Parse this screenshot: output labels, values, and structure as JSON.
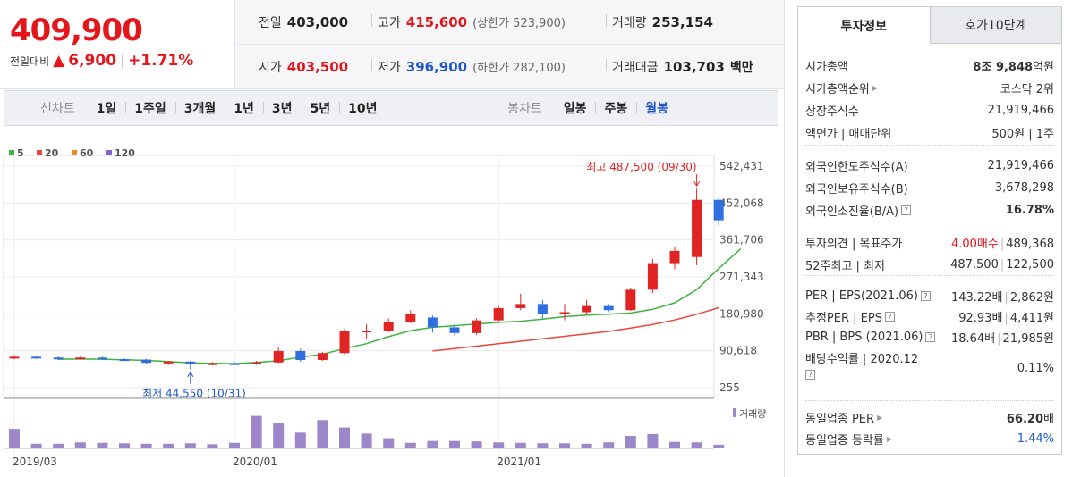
{
  "price": {
    "current": "409,900",
    "change_label": "전일대비",
    "change_symbol": "▲",
    "change_value": "6,900",
    "change_pct": "+1.71%"
  },
  "quote": {
    "prev_label": "전일",
    "prev_value": "403,000",
    "high_label": "고가",
    "high_value": "415,600",
    "upper_limit": "(상한가 523,900)",
    "volume_label": "거래량",
    "volume_value": "253,154",
    "open_label": "시가",
    "open_value": "403,500",
    "low_label": "저가",
    "low_value": "396,900",
    "lower_limit": "(하한가 282,100)",
    "amount_label": "거래대금",
    "amount_value": "103,703",
    "amount_unit": "백만"
  },
  "period_bar": {
    "line_label": "선차트",
    "line_items": [
      "1일",
      "1주일",
      "3개월",
      "1년",
      "3년",
      "5년",
      "10년"
    ],
    "candle_label": "봉차트",
    "candle_items": [
      "일봉",
      "주봉",
      "월봉"
    ],
    "active_candle": "월봉"
  },
  "chart_data": {
    "type": "candlestick",
    "ma_legend": [
      {
        "name": "5",
        "color": "#3fb23f"
      },
      {
        "name": "20",
        "color": "#e8463c"
      },
      {
        "name": "60",
        "color": "#f08a1c"
      },
      {
        "name": "120",
        "color": "#8a63c6"
      }
    ],
    "y_ticks": [
      "542,431",
      "452,068",
      "361,706",
      "271,343",
      "180,980",
      "90,618",
      "255"
    ],
    "ylim": [
      255,
      542431
    ],
    "x_ticks": [
      "2019/03",
      "2020/01",
      "2021/01"
    ],
    "annotation_high": "최고 487,500 (09/30)",
    "annotation_low": "최저 44,550 (10/31)",
    "volume_label": "거래량",
    "up_color": "#e02424",
    "down_color": "#2f6fe0",
    "candles": [
      {
        "o": 74000,
        "h": 80000,
        "l": 70000,
        "c": 76000
      },
      {
        "o": 76000,
        "h": 79000,
        "l": 71000,
        "c": 74000
      },
      {
        "o": 74000,
        "h": 77000,
        "l": 68000,
        "c": 72000
      },
      {
        "o": 72000,
        "h": 77000,
        "l": 69000,
        "c": 74000
      },
      {
        "o": 74000,
        "h": 76000,
        "l": 68000,
        "c": 70000
      },
      {
        "o": 70000,
        "h": 72000,
        "l": 66000,
        "c": 69000
      },
      {
        "o": 69000,
        "h": 71000,
        "l": 58000,
        "c": 61000
      },
      {
        "o": 61000,
        "h": 66000,
        "l": 56000,
        "c": 64000
      },
      {
        "o": 64000,
        "h": 66000,
        "l": 44550,
        "c": 58000
      },
      {
        "o": 58000,
        "h": 63000,
        "l": 55000,
        "c": 60000
      },
      {
        "o": 60000,
        "h": 64000,
        "l": 57000,
        "c": 58000
      },
      {
        "o": 58000,
        "h": 66000,
        "l": 56000,
        "c": 62000
      },
      {
        "o": 62000,
        "h": 100000,
        "l": 60000,
        "c": 90000
      },
      {
        "o": 90000,
        "h": 96000,
        "l": 64000,
        "c": 68000
      },
      {
        "o": 68000,
        "h": 88000,
        "l": 66000,
        "c": 85000
      },
      {
        "o": 85000,
        "h": 145000,
        "l": 82000,
        "c": 140000
      },
      {
        "o": 138000,
        "h": 156000,
        "l": 120000,
        "c": 140000
      },
      {
        "o": 140000,
        "h": 170000,
        "l": 136000,
        "c": 162000
      },
      {
        "o": 162000,
        "h": 190000,
        "l": 158000,
        "c": 180000
      },
      {
        "o": 172000,
        "h": 177000,
        "l": 135000,
        "c": 148000
      },
      {
        "o": 148000,
        "h": 156000,
        "l": 128000,
        "c": 134000
      },
      {
        "o": 134000,
        "h": 170000,
        "l": 130000,
        "c": 165000
      },
      {
        "o": 165000,
        "h": 200000,
        "l": 160000,
        "c": 195000
      },
      {
        "o": 195000,
        "h": 230000,
        "l": 190000,
        "c": 205000
      },
      {
        "o": 205000,
        "h": 215000,
        "l": 170000,
        "c": 180000
      },
      {
        "o": 180000,
        "h": 205000,
        "l": 165000,
        "c": 185000
      },
      {
        "o": 185000,
        "h": 215000,
        "l": 180000,
        "c": 200000
      },
      {
        "o": 200000,
        "h": 205000,
        "l": 185000,
        "c": 190000
      },
      {
        "o": 190000,
        "h": 245000,
        "l": 188000,
        "c": 240000
      },
      {
        "o": 240000,
        "h": 315000,
        "l": 232000,
        "c": 305000
      },
      {
        "o": 305000,
        "h": 345000,
        "l": 290000,
        "c": 335000
      },
      {
        "o": 320000,
        "h": 487500,
        "l": 300000,
        "c": 460000
      },
      {
        "o": 460000,
        "h": 465000,
        "l": 396900,
        "c": 409900
      }
    ],
    "ma5_start_index": 2,
    "ma5": [
      70000,
      70500,
      70000,
      68500,
      67000,
      64000,
      61000,
      60000,
      59000,
      62000,
      66000,
      75000,
      82000,
      96000,
      108000,
      125000,
      140000,
      148000,
      152000,
      156000,
      160000,
      163000,
      168000,
      174000,
      178000,
      180000,
      183000,
      192000,
      208000,
      240000,
      292000,
      340000
    ],
    "ma20_start_index": 19,
    "ma20": [
      90000,
      96000,
      102000,
      108000,
      114000,
      120000,
      126000,
      132000,
      138000,
      146000,
      155000,
      166000,
      180000,
      196000
    ],
    "volume_max": 100,
    "volumes": [
      42,
      10,
      10,
      13,
      12,
      11,
      10,
      10,
      11,
      9,
      12,
      70,
      55,
      34,
      61,
      45,
      32,
      22,
      12,
      16,
      16,
      15,
      13,
      12,
      11,
      11,
      10,
      13,
      27,
      31,
      14,
      13,
      8
    ]
  },
  "tabs": {
    "active": "투자정보",
    "inactive": "호가10단계"
  },
  "info": {
    "s1": [
      {
        "l": "시가총액",
        "caret": false,
        "r_b": "8조 9,848",
        "r": "억원"
      },
      {
        "l": "시가총액순위",
        "caret": true,
        "r_b": "",
        "r": "코스닥 2위"
      },
      {
        "l": "상장주식수",
        "caret": false,
        "r_b": "",
        "r": "21,919,466"
      },
      {
        "l": "액면가 | 매매단위",
        "caret": false,
        "r_b": "",
        "r": "500원 | 1주"
      }
    ],
    "s2": [
      {
        "l": "외국인한도주식수(A)",
        "r": "21,919,466"
      },
      {
        "l": "외국인보유주식수(B)",
        "r": "3,678,298"
      },
      {
        "l": "외국인소진율(B/A)",
        "q": true,
        "r_b": "16.78%"
      }
    ],
    "s3": {
      "opinion_label": "투자의견 | 목표주가",
      "opinion_value": "4.00매수",
      "target": "489,368",
      "w52_label": "52주최고 | 최저",
      "w52_high": "487,500",
      "w52_low": "122,500"
    },
    "s4": [
      {
        "l": "PER | EPS(2021.06)",
        "q": true,
        "a": "143.22배",
        "b": "2,862원"
      },
      {
        "l": "추정PER | EPS",
        "q": true,
        "a": "92.93배",
        "b": "4,411원"
      },
      {
        "l": "PBR | BPS (2021.06)",
        "q": true,
        "a": "18.64배",
        "b": "21,985원"
      }
    ],
    "dividend_label": "배당수익률 | 2020.12",
    "dividend_value": "0.11%",
    "s5": [
      {
        "l": "동일업종 PER",
        "r_b": "66.20",
        "r": "배",
        "cls": ""
      },
      {
        "l": "동일업종 등락률",
        "r": "-1.44%",
        "cls": "blue"
      }
    ]
  }
}
